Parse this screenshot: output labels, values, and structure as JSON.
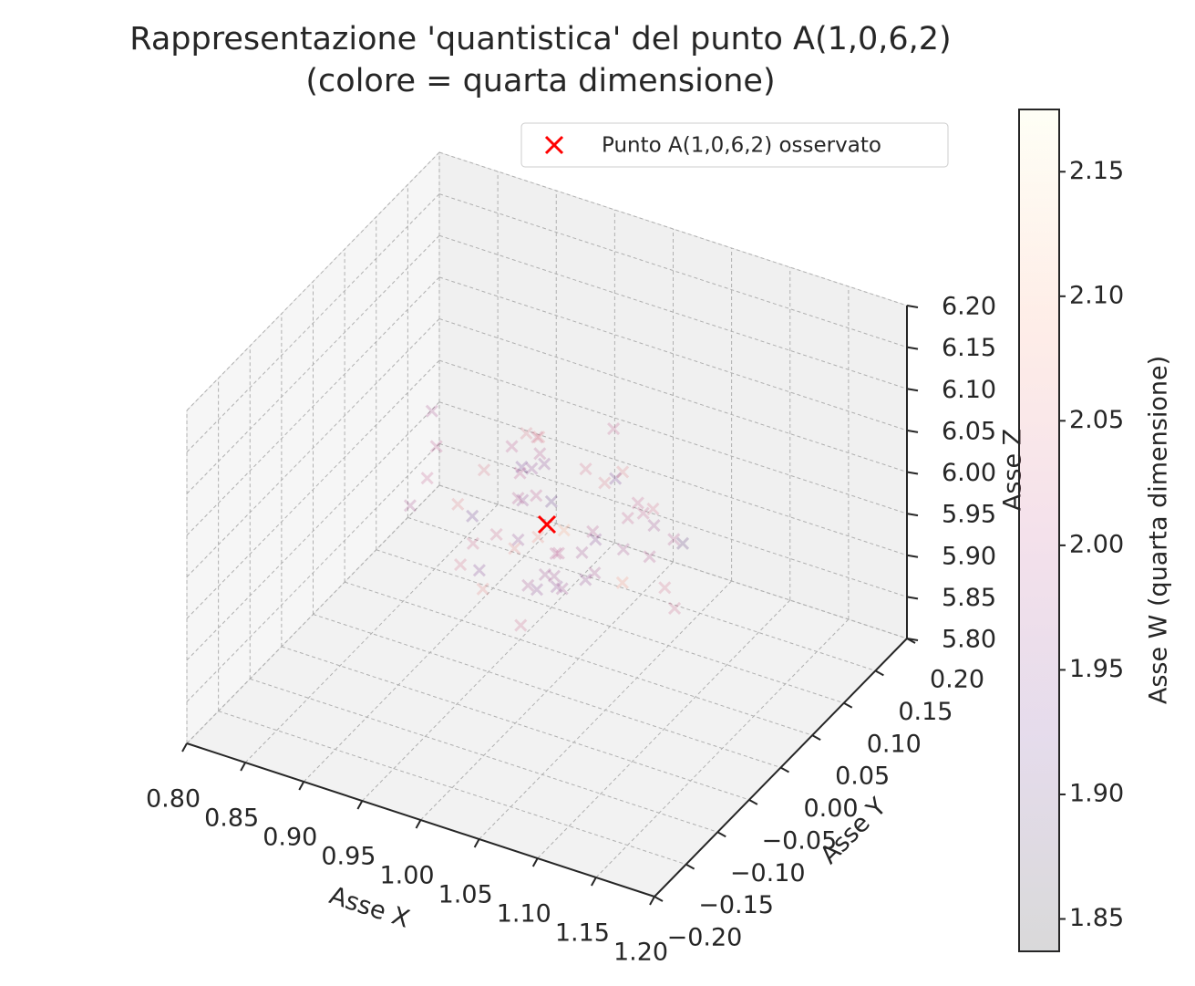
{
  "chart_data": {
    "type": "scatter3d",
    "title": "Rappresentazione 'quantistica' del punto A(1,0,6,2)",
    "subtitle": "(colore = quarta dimensione)",
    "xlabel": "Asse X",
    "ylabel": "Asse Y",
    "zlabel": "Asse Z",
    "xlim": [
      0.8,
      1.2
    ],
    "ylim": [
      -0.2,
      0.2
    ],
    "zlim": [
      5.8,
      6.2
    ],
    "xticks": [
      {
        "value": 0.8,
        "label": "0.80"
      },
      0.85,
      {
        "value": 0.9,
        "label": "0.90"
      },
      0.95,
      {
        "value": 1.0,
        "label": "1.00"
      },
      1.05,
      {
        "value": 1.1,
        "label": "1.10"
      },
      1.15,
      {
        "value": 1.2,
        "label": "1.20"
      }
    ],
    "yticks": [
      {
        "value": -0.2,
        "label": "−0.20"
      },
      {
        "value": -0.15,
        "label": "−0.15"
      },
      {
        "value": -0.1,
        "label": "−0.10"
      },
      {
        "value": -0.05,
        "label": "−0.05"
      },
      {
        "value": 0.0,
        "label": "0.00"
      },
      0.05,
      {
        "value": 0.1,
        "label": "0.10"
      },
      0.15,
      {
        "value": 0.2,
        "label": "0.20"
      }
    ],
    "zticks": [
      {
        "value": 5.8,
        "label": "5.80"
      },
      5.85,
      {
        "value": 5.9,
        "label": "5.90"
      },
      5.95,
      {
        "value": 6.0,
        "label": "6.00"
      },
      6.05,
      {
        "value": 6.1,
        "label": "6.10"
      },
      6.15,
      {
        "value": 6.2,
        "label": "6.20"
      }
    ],
    "grid": true,
    "legend": "upper right",
    "colorbar": {
      "label": "Asse W (quarta dimensione)",
      "clim": [
        1.837,
        2.175
      ],
      "colormap": "magma",
      "alpha": 0.15,
      "ticks": [
        1.85,
        {
          "value": 1.9,
          "label": "1.90"
        },
        1.95,
        {
          "value": 2.0,
          "label": "2.00"
        },
        2.05,
        {
          "value": 2.1,
          "label": "2.10"
        },
        2.15
      ]
    },
    "series": [
      {
        "marker": "x",
        "colormap": "magma",
        "alpha": 0.2,
        "x": [
          0.98,
          1.03,
          0.95,
          1.06,
          1.01,
          0.92,
          1.08,
          0.99,
          1.04,
          0.97,
          1.02,
          0.94,
          1.05,
          1.0,
          0.96,
          1.07,
          1.01,
          0.93,
          1.03,
          0.98,
          1.1,
          0.9,
          1.02,
          0.99,
          1.05,
          0.96,
          1.04,
          0.97,
          1.01,
          1.06,
          0.95,
          1.0,
          1.03,
          0.98,
          1.08,
          0.94,
          1.02,
          0.99,
          1.04,
          0.96,
          1.12,
          0.88,
          1.01,
          0.97,
          1.05,
          1.0,
          0.93,
          1.06,
          0.98,
          1.03,
          0.95,
          1.02,
          1.09,
          0.91,
          1.0,
          0.99,
          1.04,
          0.97,
          1.01,
          1.07
        ],
        "y": [
          0.02,
          -0.04,
          0.06,
          0.01,
          -0.07,
          0.03,
          -0.02,
          0.08,
          -0.05,
          0.0,
          0.04,
          -0.03,
          0.07,
          -0.08,
          0.05,
          -0.01,
          0.09,
          -0.06,
          0.02,
          -0.1,
          0.03,
          0.01,
          -0.04,
          0.11,
          -0.02,
          0.06,
          -0.09,
          0.04,
          0.0,
          -0.05,
          0.08,
          -0.03,
          0.05,
          -0.07,
          0.02,
          0.1,
          -0.01,
          0.03,
          -0.06,
          0.07,
          -0.02,
          0.04,
          -0.12,
          0.01,
          0.06,
          -0.04,
          0.03,
          0.09,
          -0.08,
          0.0,
          0.05,
          -0.03,
          0.02,
          -0.05,
          0.12,
          -0.02,
          0.07,
          0.01,
          -0.06,
          0.04
        ],
        "z": [
          6.01,
          5.97,
          6.04,
          5.99,
          6.03,
          5.95,
          6.06,
          6.0,
          5.98,
          6.08,
          5.96,
          6.02,
          5.93,
          6.05,
          6.01,
          5.97,
          5.99,
          6.07,
          5.94,
          6.02,
          6.0,
          6.04,
          5.98,
          5.96,
          6.03,
          5.92,
          6.01,
          6.06,
          5.97,
          6.0,
          6.02,
          5.95,
          6.09,
          5.99,
          6.04,
          5.98,
          6.01,
          5.91,
          6.03,
          6.0,
          5.97,
          6.05,
          6.02,
          5.96,
          5.99,
          6.1,
          6.01,
          5.94,
          6.03,
          5.98,
          6.0,
          6.06,
          5.95,
          6.02,
          5.97,
          6.04,
          5.99,
          6.01,
          5.93,
          6.0
        ],
        "w": [
          2.0,
          1.95,
          2.04,
          1.98,
          2.06,
          1.92,
          2.01,
          2.03,
          1.97,
          2.0,
          1.94,
          2.05,
          1.99,
          2.02,
          1.96,
          2.08,
          1.93,
          2.01,
          1.98,
          2.03,
          1.9,
          2.0,
          1.97,
          2.04,
          1.99,
          2.07,
          1.95,
          2.02,
          2.0,
          1.96,
          2.05,
          1.98,
          2.01,
          1.94,
          2.03,
          1.99,
          2.1,
          1.97,
          2.0,
          1.95,
          2.02,
          1.98,
          2.06,
          1.96,
          2.01,
          1.93,
          2.04,
          1.99,
          2.02,
          1.97,
          2.0,
          1.91,
          2.03,
          1.98,
          2.05,
          1.96,
          2.01,
          1.99,
          2.02,
          1.97
        ]
      },
      {
        "name": "Punto A(1,0,6,2) osservato",
        "marker": "x",
        "color": "#ff0000",
        "x": [
          1.0
        ],
        "y": [
          0.0
        ],
        "z": [
          6.0
        ]
      }
    ]
  }
}
